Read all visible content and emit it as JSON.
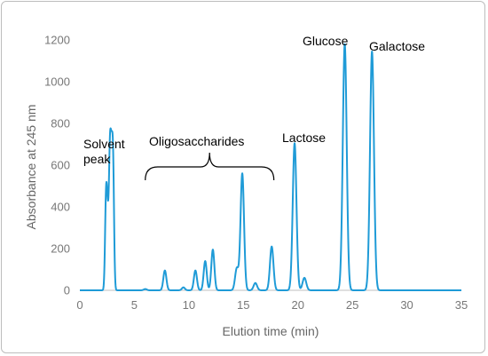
{
  "chart_data": {
    "type": "line",
    "xlabel": "Elution time (min)",
    "ylabel": "Absorbance at 245 nm",
    "xlim": [
      0,
      35
    ],
    "ylim": [
      0,
      1200
    ],
    "x_ticks": [
      "0",
      "5",
      "10",
      "15",
      "20",
      "25",
      "30",
      "35"
    ],
    "y_ticks": [
      "0",
      "200",
      "400",
      "600",
      "800",
      "1000",
      "1200"
    ],
    "grid": false,
    "line_color": "#1f9bd7",
    "peaks": [
      {
        "x": 2.4,
        "y": 420
      },
      {
        "x": 2.55,
        "y": 290
      },
      {
        "x": 2.75,
        "y": 580
      },
      {
        "x": 2.9,
        "y": 480
      },
      {
        "x": 3.05,
        "y": 560
      },
      {
        "x": 6.0,
        "y": 6
      },
      {
        "x": 7.8,
        "y": 95
      },
      {
        "x": 9.5,
        "y": 14
      },
      {
        "x": 10.6,
        "y": 95
      },
      {
        "x": 11.5,
        "y": 140
      },
      {
        "x": 12.2,
        "y": 195
      },
      {
        "x": 14.4,
        "y": 105
      },
      {
        "x": 14.9,
        "y": 560
      },
      {
        "x": 16.1,
        "y": 35
      },
      {
        "x": 17.6,
        "y": 210
      },
      {
        "x": 19.7,
        "y": 705
      },
      {
        "x": 20.6,
        "y": 60
      },
      {
        "x": 24.3,
        "y": 1180
      },
      {
        "x": 26.8,
        "y": 1145
      }
    ],
    "annotations": [
      {
        "id": "solvent",
        "lines": [
          "Solvent",
          "peak"
        ]
      },
      {
        "id": "oligo",
        "text": "Oligosaccharides",
        "span": [
          6,
          17.8
        ]
      },
      {
        "id": "lactose",
        "text": "Lactose"
      },
      {
        "id": "glucose",
        "text": "Glucose"
      },
      {
        "id": "galactose",
        "text": "Galactose"
      }
    ]
  }
}
